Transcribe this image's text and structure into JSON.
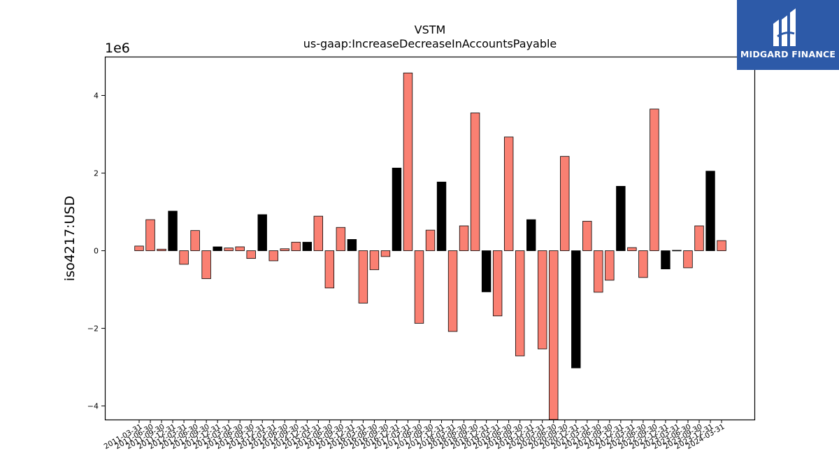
{
  "logo": {
    "text": "MIDGARD FINANCE",
    "icon": "midgard-logo-icon",
    "background": "#2d5aa8"
  },
  "colors": {
    "positive": "#fa8072",
    "negative": "#000000",
    "edge": "#000000"
  },
  "chart_data": {
    "type": "bar",
    "title": "VSTM",
    "subtitle": "us-gaap:IncreaseDecreaseInAccountsPayable",
    "ylabel": "iso4217:USD",
    "xlabel": "",
    "y_multiplier_label": "1e6",
    "ylim": [
      -4.35,
      5.0
    ],
    "yticks": [
      -4,
      -2,
      0,
      2,
      4
    ],
    "yticklabels": [
      "−4",
      "−2",
      "0",
      "2",
      "4"
    ],
    "grid": false,
    "categories": [
      "2011-03-31",
      "2011-06-30",
      "2011-09-30",
      "2011-12-31",
      "2012-03-31",
      "2012-06-30",
      "2012-09-30",
      "2012-12-31",
      "2013-03-31",
      "2013-06-30",
      "2013-09-30",
      "2013-12-31",
      "2014-03-31",
      "2014-06-30",
      "2014-09-30",
      "2014-12-31",
      "2015-03-31",
      "2015-06-30",
      "2015-09-30",
      "2015-12-31",
      "2016-03-31",
      "2016-06-30",
      "2016-09-30",
      "2016-12-31",
      "2017-03-31",
      "2017-06-30",
      "2017-09-30",
      "2017-12-31",
      "2018-03-31",
      "2018-06-30",
      "2018-09-30",
      "2018-12-31",
      "2019-03-31",
      "2019-06-30",
      "2019-09-30",
      "2019-12-31",
      "2020-03-31",
      "2020-06-30",
      "2020-09-30",
      "2020-12-31",
      "2021-03-31",
      "2021-06-30",
      "2021-09-30",
      "2021-12-31",
      "2022-03-31",
      "2022-06-30",
      "2022-09-30",
      "2022-12-31",
      "2023-03-31",
      "2023-06-30",
      "2023-09-30",
      "2023-12-31",
      "2024-03-31"
    ],
    "values": [
      0.12,
      0.8,
      0.04,
      1.02,
      -0.35,
      0.52,
      -0.72,
      0.1,
      0.07,
      0.1,
      -0.2,
      0.93,
      -0.26,
      0.05,
      0.22,
      0.22,
      0.89,
      -0.96,
      0.6,
      0.29,
      -1.35,
      -0.49,
      -0.15,
      2.13,
      4.58,
      -1.87,
      0.53,
      1.77,
      -2.08,
      0.64,
      3.55,
      -1.06,
      -1.68,
      2.93,
      -2.71,
      0.8,
      -2.53,
      -4.35,
      2.43,
      -3.02,
      0.76,
      -1.07,
      -0.76,
      1.66,
      0.08,
      -0.69,
      3.65,
      -0.47,
      0.01,
      -0.44,
      0.64,
      2.05,
      0.26
    ],
    "fill": [
      "salmon",
      "salmon",
      "salmon",
      "black",
      "salmon",
      "salmon",
      "salmon",
      "black",
      "salmon",
      "salmon",
      "salmon",
      "black",
      "salmon",
      "salmon",
      "salmon",
      "black",
      "salmon",
      "salmon",
      "salmon",
      "black",
      "salmon",
      "salmon",
      "salmon",
      "black",
      "salmon",
      "salmon",
      "salmon",
      "black",
      "salmon",
      "salmon",
      "salmon",
      "black",
      "salmon",
      "salmon",
      "salmon",
      "black",
      "salmon",
      "salmon",
      "salmon",
      "black",
      "salmon",
      "salmon",
      "salmon",
      "black",
      "salmon",
      "salmon",
      "salmon",
      "black",
      "salmon",
      "salmon",
      "salmon",
      "black",
      "salmon"
    ]
  }
}
